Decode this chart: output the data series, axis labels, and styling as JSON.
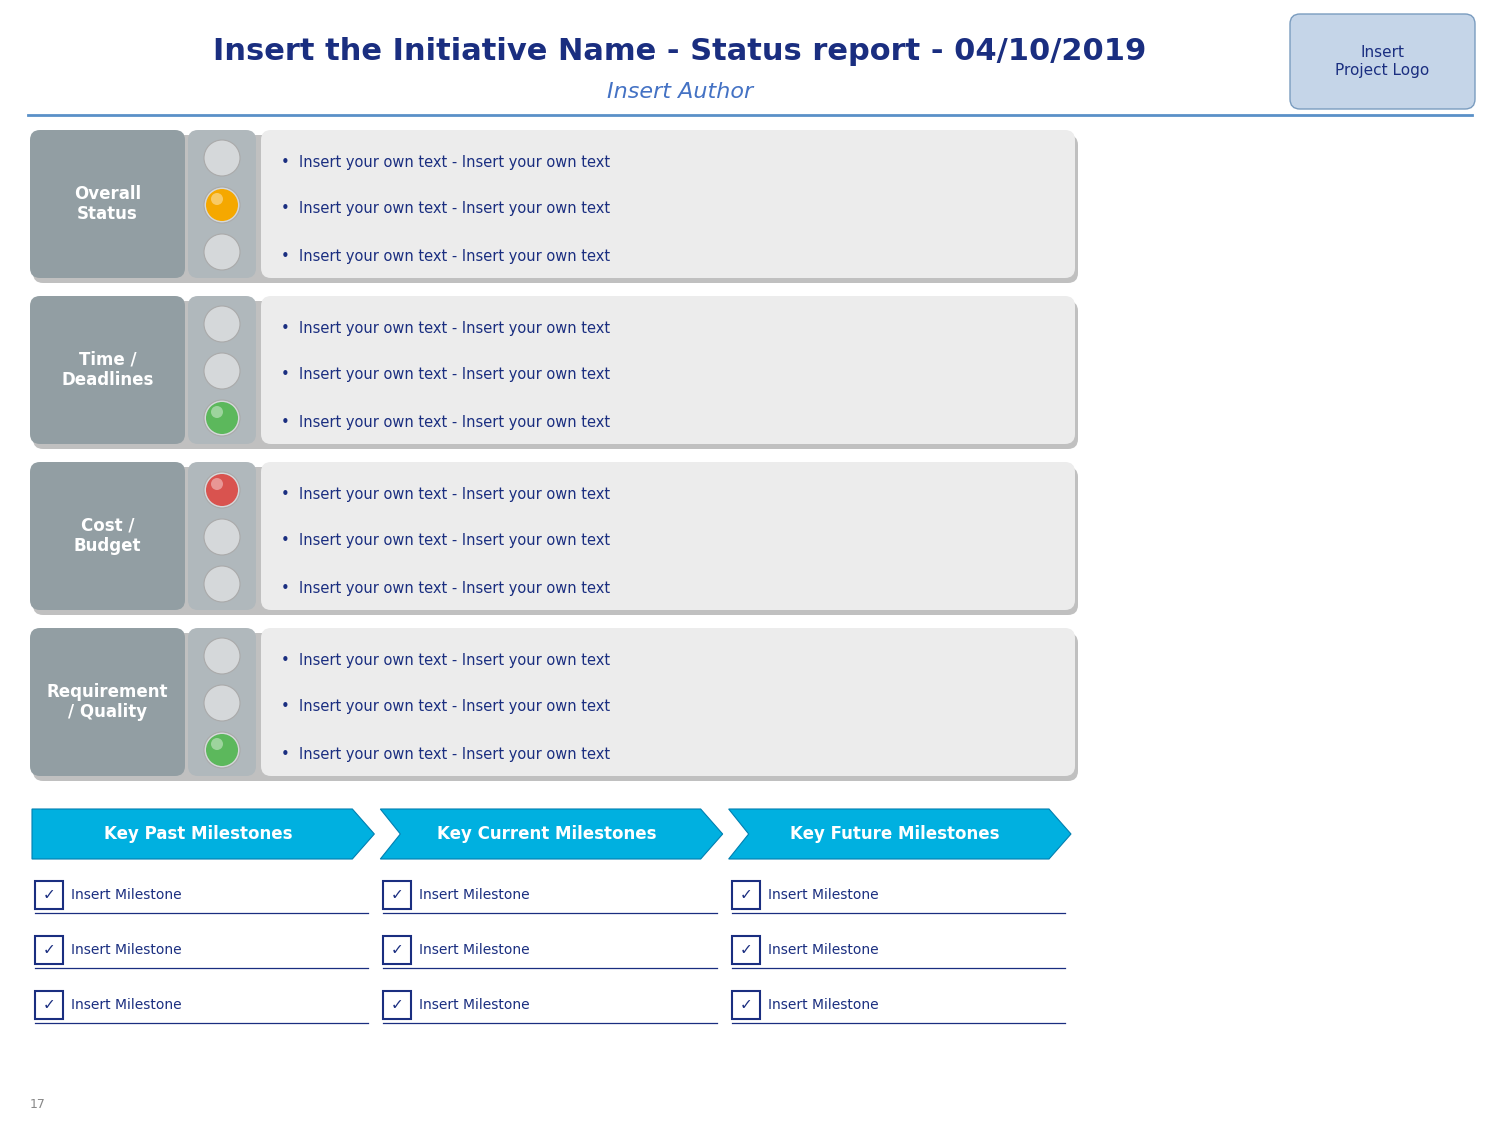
{
  "title": "Insert the Initiative Name - Status report - 04/10/2019",
  "subtitle": "Insert Author",
  "logo_text": "Insert\nProject Logo",
  "page_num": "17",
  "bg_color": "#ffffff",
  "title_color": "#1a2e80",
  "subtitle_color": "#4472c4",
  "header_line_color": "#5a90c8",
  "rows": [
    {
      "label": "Overall\nStatus",
      "lights": [
        "white",
        "#f5a800",
        "white"
      ],
      "texts": [
        "Insert your own text - Insert your own text",
        "Insert your own text - Insert your own text",
        "Insert your own text - Insert your own text"
      ]
    },
    {
      "label": "Time /\nDeadlines",
      "lights": [
        "white",
        "white",
        "#5cb85c"
      ],
      "texts": [
        "Insert your own text - Insert your own text",
        "Insert your own text - Insert your own text",
        "Insert your own text - Insert your own text"
      ]
    },
    {
      "label": "Cost /\nBudget",
      "lights": [
        "#d9534f",
        "white",
        "white"
      ],
      "texts": [
        "Insert your own text - Insert your own text",
        "Insert your own text - Insert your own text",
        "Insert your own text - Insert your own text"
      ]
    },
    {
      "label": "Requirement\n/ Quality",
      "lights": [
        "white",
        "white",
        "#5cb85c"
      ],
      "texts": [
        "Insert your own text - Insert your own text",
        "Insert your own text - Insert your own text",
        "Insert your own text - Insert your own text"
      ]
    }
  ],
  "milestones": [
    {
      "title": "Key Past Milestones",
      "items": [
        "Insert Milestone",
        "Insert Milestone",
        "Insert Milestone"
      ]
    },
    {
      "title": "Key Current Milestones",
      "items": [
        "Insert Milestone",
        "Insert Milestone",
        "Insert Milestone"
      ]
    },
    {
      "title": "Key Future Milestones",
      "items": [
        "Insert Milestone",
        "Insert Milestone",
        "Insert Milestone"
      ]
    }
  ],
  "label_bg": "#929ea3",
  "light_bg": "#b0b8bc",
  "text_box_bg": "#ececec",
  "text_color": "#1a2e80",
  "milestone_arrow_color": "#00b0e0",
  "milestone_text_color": "#ffffff",
  "milestone_item_color": "#1a2e80"
}
